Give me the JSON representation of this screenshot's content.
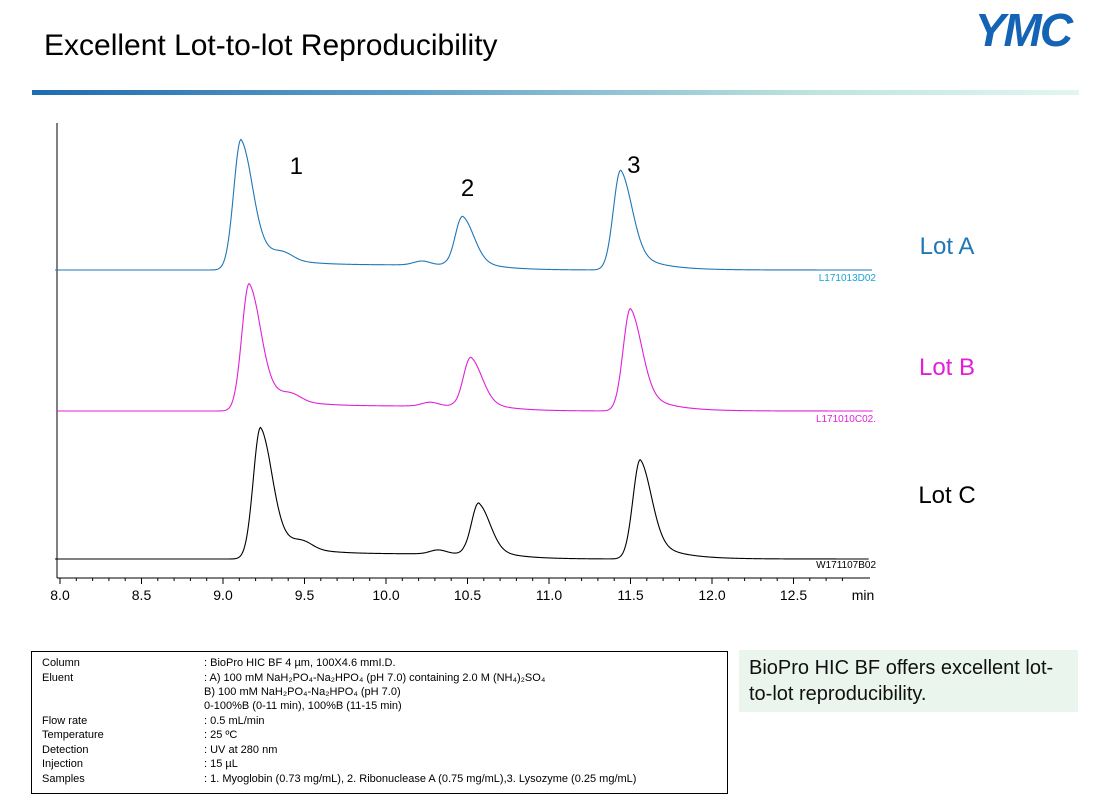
{
  "header": {
    "title": "Excellent Lot-to-lot Reproducibility",
    "logo_text": "YMC",
    "logo_color": "#1563b4",
    "rule_colors": [
      "#1e6bb0",
      "#e2f6f1"
    ]
  },
  "chart_data": {
    "type": "line",
    "x_unit": "min",
    "xlim": [
      8.0,
      13.0
    ],
    "x_ticks": [
      "8.0",
      "8.5",
      "9.0",
      "9.5",
      "10.0",
      "10.5",
      "11.0",
      "11.5",
      "12.0",
      "12.5"
    ],
    "grid": false,
    "peak_labels": [
      {
        "label": "1",
        "x": 9.45
      },
      {
        "label": "2",
        "x": 10.5
      },
      {
        "label": "3",
        "x": 11.52
      }
    ],
    "series": [
      {
        "name": "Lot A",
        "file_id": "L171013D02",
        "color": "#1f77b4",
        "id_color": "#1aa3d6",
        "peaks": [
          {
            "x": 9.11,
            "height": 1.0
          },
          {
            "x": 10.47,
            "height": 0.42
          },
          {
            "x": 11.44,
            "height": 0.78
          }
        ]
      },
      {
        "name": "Lot B",
        "file_id": "L171010C02.",
        "color": "#e020d8",
        "id_color": "#e020d8",
        "peaks": [
          {
            "x": 9.16,
            "height": 1.0
          },
          {
            "x": 10.52,
            "height": 0.43
          },
          {
            "x": 11.5,
            "height": 0.82
          }
        ]
      },
      {
        "name": "Lot C",
        "file_id": "W171107B02",
        "color": "#000000",
        "id_color": "#000000",
        "peaks": [
          {
            "x": 9.23,
            "height": 1.0
          },
          {
            "x": 10.57,
            "height": 0.43
          },
          {
            "x": 11.56,
            "height": 0.77
          }
        ]
      }
    ]
  },
  "conditions": [
    {
      "label": "Column",
      "value": ": BioPro HIC BF 4 µm, 100X4.6 mmI.D."
    },
    {
      "label": "Eluent",
      "value": ": A) 100 mM NaH₂PO₄-Na₂HPO₄ (pH 7.0)  containing 2.0 M (NH₄)₂SO₄"
    },
    {
      "label": "",
      "value": "  B) 100 mM NaH₂PO₄-Na₂HPO₄ (pH 7.0)"
    },
    {
      "label": "",
      "value": "  0-100%B (0-11 min), 100%B (11-15 min)"
    },
    {
      "label": "Flow rate",
      "value": ": 0.5 mL/min"
    },
    {
      "label": "Temperature",
      "value": ": 25 ºC"
    },
    {
      "label": "Detection",
      "value": ": UV at 280 nm"
    },
    {
      "label": "Injection",
      "value": ": 15 µL"
    },
    {
      "label": "Samples",
      "value": ": 1. Myoglobin (0.73 mg/mL), 2. Ribonuclease A (0.75 mg/mL),3. Lysozyme (0.25 mg/mL)"
    }
  ],
  "callout": {
    "text": "BioPro HIC BF offers excellent lot-to-lot reproducibility."
  }
}
